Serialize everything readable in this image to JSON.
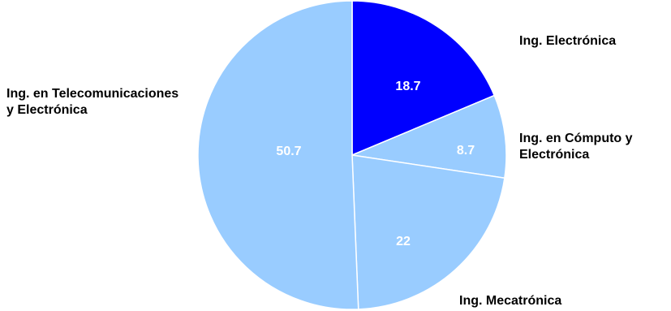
{
  "chart_data": {
    "type": "pie",
    "title": "",
    "categories": [
      "Ing. Electrónica",
      "Ing. en Cómputo y Electrónica",
      "Ing. Mecatrónica",
      "Ing. en Telecomunicaciones y Electrónica"
    ],
    "values": [
      18.7,
      8.7,
      22,
      50.7
    ],
    "value_labels": [
      "18.7",
      "8.7",
      "22",
      "50.7"
    ],
    "colors": [
      "#0000ff",
      "#99ccff",
      "#99ccff",
      "#99ccff"
    ],
    "slice_border_color": "#ffffff",
    "label_color": "#000000",
    "value_label_color": "#ffffff",
    "legend": false
  }
}
